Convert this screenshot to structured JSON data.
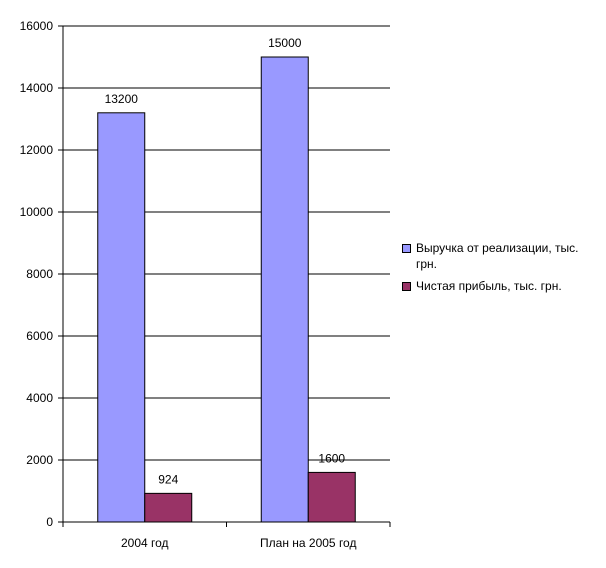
{
  "chart_data": {
    "type": "bar",
    "categories": [
      "2004 год",
      "План на 2005 год"
    ],
    "series": [
      {
        "name": "Выручка от реализации,  тыс. грн.",
        "values": [
          13200,
          15000
        ],
        "color": "#9999ff"
      },
      {
        "name": "Чистая прибыль, тыс. грн.",
        "values": [
          924,
          1600
        ],
        "color": "#993366"
      }
    ],
    "data_labels": [
      [
        "13200",
        "15000"
      ],
      [
        "924",
        "1600"
      ]
    ],
    "y_ticks": [
      "0",
      "2000",
      "4000",
      "6000",
      "8000",
      "10000",
      "12000",
      "14000",
      "16000"
    ],
    "ylim": [
      0,
      16000
    ],
    "grid": true,
    "legend_position": "right",
    "plot_background": "#ffffff",
    "grid_color": "#000000"
  }
}
